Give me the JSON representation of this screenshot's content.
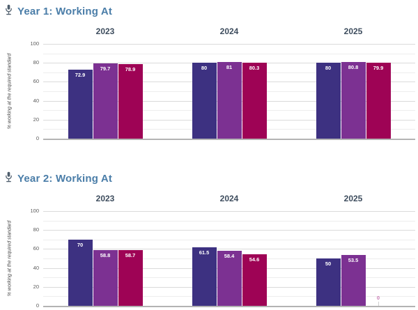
{
  "sections": [
    {
      "title": "Year 1: Working At",
      "icon": "microphone-icon"
    },
    {
      "title": "Year 2: Working At",
      "icon": "microphone-icon"
    }
  ],
  "colors": {
    "header_text": "#4a7da8",
    "category_title": "#3e4d5e",
    "series_1": "#3d3181",
    "series_2": "#7c3192",
    "series_3": "#9e0355",
    "zero_value_label": "#c77ab3",
    "gridline_major": "#dadada",
    "gridline_minor": "#ededed",
    "axis_baseline": "#b3b3b3",
    "tick_text": "#5a5a5a"
  },
  "chart_data": [
    {
      "type": "bar",
      "title": "Year 1: Working At",
      "categories": [
        "2023",
        "2024",
        "2025"
      ],
      "series": [
        {
          "name": "series-1",
          "color": "#3d3181",
          "values": [
            72.9,
            80,
            80
          ]
        },
        {
          "name": "series-2",
          "color": "#7c3192",
          "values": [
            79.7,
            81,
            80.8
          ]
        },
        {
          "name": "series-3",
          "color": "#9e0355",
          "values": [
            78.9,
            80.3,
            79.9
          ]
        }
      ],
      "xlabel": "",
      "ylabel": "% working at the required standard",
      "ylim": [
        0,
        100
      ],
      "yticks": [
        0,
        20,
        40,
        60,
        80,
        100
      ],
      "grid": true,
      "legend_position": "none",
      "value_labels": "inside-top"
    },
    {
      "type": "bar",
      "title": "Year 2: Working At",
      "categories": [
        "2023",
        "2024",
        "2025"
      ],
      "series": [
        {
          "name": "series-1",
          "color": "#3d3181",
          "values": [
            70,
            61.5,
            50
          ]
        },
        {
          "name": "series-2",
          "color": "#7c3192",
          "values": [
            58.8,
            58.4,
            53.5
          ]
        },
        {
          "name": "series-3",
          "color": "#9e0355",
          "values": [
            58.7,
            54.6,
            0
          ]
        }
      ],
      "xlabel": "",
      "ylabel": "% working at the required standard",
      "ylim": [
        0,
        100
      ],
      "yticks": [
        0,
        20,
        40,
        60,
        80,
        100
      ],
      "grid": true,
      "legend_position": "none",
      "value_labels": "inside-top"
    }
  ]
}
